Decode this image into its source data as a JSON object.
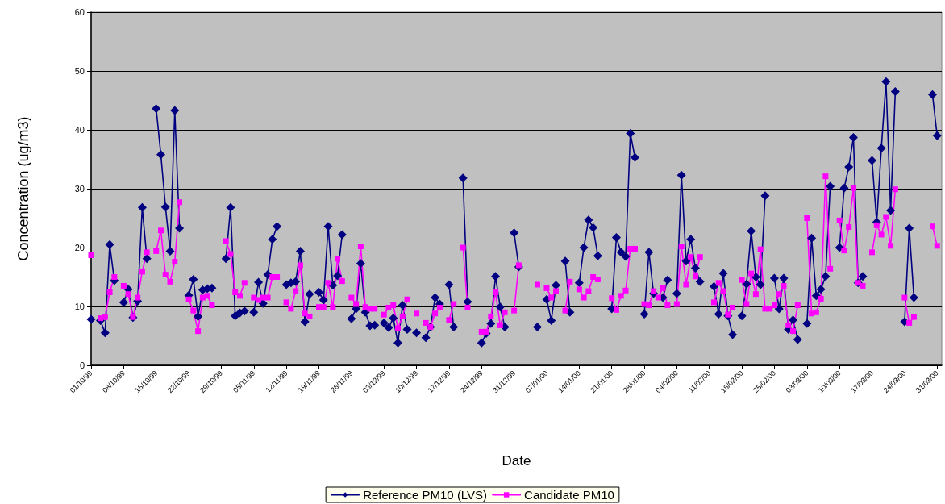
{
  "chart_data": {
    "type": "line",
    "xlabel": "Date",
    "ylabel": "Concentration (ug/m3)",
    "x": [
      "1999-10-01",
      "1999-10-02",
      "1999-10-03",
      "1999-10-04",
      "1999-10-05",
      "1999-10-06",
      "1999-10-07",
      "1999-10-08",
      "1999-10-09",
      "1999-10-10",
      "1999-10-11",
      "1999-10-12",
      "1999-10-13",
      "1999-10-14",
      "1999-10-15",
      "1999-10-16",
      "1999-10-17",
      "1999-10-18",
      "1999-10-19",
      "1999-10-20",
      "1999-10-21",
      "1999-10-22",
      "1999-10-23",
      "1999-10-24",
      "1999-10-25",
      "1999-10-26",
      "1999-10-27",
      "1999-10-28",
      "1999-10-29",
      "1999-10-30",
      "1999-10-31",
      "1999-11-01",
      "1999-11-02",
      "1999-11-03",
      "1999-11-04",
      "1999-11-05",
      "1999-11-06",
      "1999-11-07",
      "1999-11-08",
      "1999-11-09",
      "1999-11-10",
      "1999-11-11",
      "1999-11-12",
      "1999-11-13",
      "1999-11-14",
      "1999-11-15",
      "1999-11-16",
      "1999-11-17",
      "1999-11-18",
      "1999-11-19",
      "1999-11-20",
      "1999-11-21",
      "1999-11-22",
      "1999-11-23",
      "1999-11-24",
      "1999-11-25",
      "1999-11-26",
      "1999-11-27",
      "1999-11-28",
      "1999-11-29",
      "1999-11-30",
      "1999-12-01",
      "1999-12-02",
      "1999-12-03",
      "1999-12-04",
      "1999-12-05",
      "1999-12-06",
      "1999-12-07",
      "1999-12-08",
      "1999-12-09",
      "1999-12-10",
      "1999-12-11",
      "1999-12-12",
      "1999-12-13",
      "1999-12-14",
      "1999-12-15",
      "1999-12-16",
      "1999-12-17",
      "1999-12-18",
      "1999-12-19",
      "1999-12-20",
      "1999-12-21",
      "1999-12-22",
      "1999-12-23",
      "1999-12-24",
      "1999-12-25",
      "1999-12-26",
      "1999-12-27",
      "1999-12-28",
      "1999-12-29",
      "1999-12-30",
      "1999-12-31",
      "2000-01-01",
      "2000-01-02",
      "2000-01-03",
      "2000-01-04",
      "2000-01-05",
      "2000-01-06",
      "2000-01-07",
      "2000-01-08",
      "2000-01-09",
      "2000-01-10",
      "2000-01-11",
      "2000-01-12",
      "2000-01-13",
      "2000-01-14",
      "2000-01-15",
      "2000-01-16",
      "2000-01-17",
      "2000-01-18",
      "2000-01-19",
      "2000-01-20",
      "2000-01-21",
      "2000-01-22",
      "2000-01-23",
      "2000-01-24",
      "2000-01-25",
      "2000-01-26",
      "2000-01-27",
      "2000-01-28",
      "2000-01-29",
      "2000-01-30",
      "2000-01-31",
      "2000-02-01",
      "2000-02-02",
      "2000-02-03",
      "2000-02-04",
      "2000-02-05",
      "2000-02-06",
      "2000-02-07",
      "2000-02-08",
      "2000-02-09",
      "2000-02-10",
      "2000-02-11",
      "2000-02-12",
      "2000-02-13",
      "2000-02-14",
      "2000-02-15",
      "2000-02-16",
      "2000-02-17",
      "2000-02-18",
      "2000-02-19",
      "2000-02-20",
      "2000-02-21",
      "2000-02-22",
      "2000-02-23",
      "2000-02-24",
      "2000-02-25",
      "2000-02-26",
      "2000-02-27",
      "2000-02-28",
      "2000-02-29",
      "2000-03-01",
      "2000-03-02",
      "2000-03-03",
      "2000-03-04",
      "2000-03-05",
      "2000-03-06",
      "2000-03-07",
      "2000-03-08",
      "2000-03-09",
      "2000-03-10",
      "2000-03-11",
      "2000-03-12",
      "2000-03-13",
      "2000-03-14",
      "2000-03-15",
      "2000-03-16",
      "2000-03-17",
      "2000-03-18",
      "2000-03-19",
      "2000-03-20",
      "2000-03-21",
      "2000-03-22",
      "2000-03-23",
      "2000-03-24",
      "2000-03-25",
      "2000-03-26",
      "2000-03-27",
      "2000-03-28",
      "2000-03-29",
      "2000-03-30",
      "2000-03-31"
    ],
    "series": [
      {
        "name": "Reference PM10 (LVS)",
        "color": "#000080",
        "marker": "diamond",
        "values": [
          7.8,
          null,
          7.6,
          5.5,
          20.5,
          14.4,
          null,
          10.7,
          12.9,
          8.1,
          10.9,
          26.8,
          18.1,
          null,
          43.6,
          35.8,
          26.9,
          19.4,
          43.3,
          23.3,
          null,
          11.9,
          14.6,
          8.3,
          12.8,
          13.0,
          13.1,
          null,
          null,
          18.1,
          26.8,
          8.4,
          8.9,
          9.2,
          null,
          9.0,
          14.1,
          10.5,
          15.4,
          21.4,
          23.6,
          null,
          13.7,
          14.0,
          14.2,
          19.4,
          7.4,
          12.1,
          null,
          12.4,
          11.1,
          23.6,
          13.6,
          15.2,
          22.2,
          null,
          7.9,
          9.6,
          17.3,
          9.0,
          6.7,
          6.8,
          null,
          7.2,
          6.4,
          8.0,
          3.8,
          10.2,
          6.1,
          null,
          5.5,
          null,
          4.7,
          6.5,
          11.5,
          10.4,
          null,
          13.7,
          6.5,
          null,
          31.8,
          10.8,
          null,
          null,
          3.8,
          5.4,
          7.1,
          15.1,
          9.9,
          6.5,
          null,
          22.5,
          16.7,
          null,
          null,
          null,
          6.5,
          null,
          11.2,
          7.6,
          13.6,
          null,
          17.7,
          9.0,
          null,
          14.0,
          20.0,
          24.7,
          23.4,
          18.6,
          null,
          null,
          9.6,
          21.7,
          19.2,
          18.5,
          39.4,
          35.3,
          null,
          8.7,
          19.2,
          12.2,
          null,
          11.5,
          14.5,
          null,
          12.2,
          32.3,
          17.7,
          21.4,
          16.5,
          14.2,
          null,
          null,
          13.4,
          8.7,
          15.6,
          8.4,
          5.2,
          null,
          8.4,
          13.8,
          22.8,
          15.0,
          13.7,
          28.8,
          null,
          14.8,
          9.6,
          14.8,
          6.1,
          7.7,
          4.4,
          null,
          7.1,
          21.6,
          11.8,
          12.9,
          15.1,
          30.4,
          null,
          20.0,
          30.1,
          33.7,
          38.7,
          14.0,
          15.1,
          null,
          34.8,
          24.3,
          36.9,
          48.2,
          26.3,
          46.5,
          null,
          7.4,
          23.3,
          11.5,
          null,
          null,
          null,
          46.0,
          39.0
        ]
      },
      {
        "name": "Candidate PM10",
        "color": "#ff00ff",
        "marker": "square",
        "values": [
          18.7,
          null,
          8.0,
          8.2,
          12.4,
          15.0,
          null,
          13.5,
          12.1,
          8.2,
          11.5,
          15.9,
          19.2,
          null,
          19.4,
          22.9,
          15.4,
          14.2,
          17.6,
          27.7,
          null,
          11.2,
          9.3,
          5.8,
          11.5,
          11.8,
          10.2,
          null,
          null,
          21.1,
          18.9,
          12.4,
          11.8,
          14.0,
          null,
          11.5,
          11.1,
          11.5,
          11.5,
          15.0,
          15.0,
          null,
          10.7,
          9.6,
          12.6,
          17.0,
          8.8,
          8.3,
          null,
          9.9,
          9.9,
          14.0,
          9.9,
          18.1,
          14.3,
          null,
          11.5,
          10.4,
          20.2,
          9.9,
          9.6,
          9.6,
          null,
          8.6,
          9.8,
          10.2,
          6.3,
          8.3,
          11.2,
          null,
          8.8,
          null,
          7.2,
          6.5,
          8.8,
          9.8,
          null,
          7.7,
          10.4,
          null,
          20.0,
          9.8,
          null,
          null,
          5.7,
          5.7,
          8.3,
          12.4,
          6.8,
          9.0,
          null,
          9.3,
          17.0,
          null,
          null,
          null,
          13.7,
          null,
          13.1,
          11.5,
          12.6,
          null,
          9.3,
          14.2,
          null,
          12.9,
          11.5,
          12.6,
          15.0,
          14.6,
          null,
          null,
          11.4,
          9.4,
          11.8,
          12.7,
          19.8,
          19.8,
          null,
          10.4,
          10.2,
          12.6,
          11.5,
          13.1,
          10.2,
          null,
          10.4,
          20.2,
          13.7,
          18.4,
          15.1,
          18.4,
          null,
          null,
          10.7,
          14.0,
          12.6,
          8.6,
          9.8,
          null,
          14.5,
          10.4,
          15.6,
          12.1,
          19.7,
          9.6,
          9.6,
          10.2,
          12.1,
          13.5,
          6.8,
          5.8,
          10.2,
          null,
          25.0,
          8.8,
          9.0,
          11.3,
          32.1,
          16.4,
          null,
          24.6,
          19.5,
          23.5,
          30.1,
          14.0,
          13.5,
          null,
          19.2,
          23.8,
          22.2,
          25.2,
          20.3,
          29.9,
          null,
          11.5,
          7.2,
          8.2,
          null,
          null,
          null,
          23.6,
          20.3
        ]
      }
    ],
    "xlim": [
      "1999-10-01",
      "2000-04-01"
    ],
    "xticks": [
      {
        "value": "1999-10-01",
        "label": "01/10/99"
      },
      {
        "value": "1999-10-08",
        "label": "08/10/99"
      },
      {
        "value": "1999-10-15",
        "label": "15/10/99"
      },
      {
        "value": "1999-10-22",
        "label": "22/10/99"
      },
      {
        "value": "1999-10-29",
        "label": "29/10/99"
      },
      {
        "value": "1999-11-05",
        "label": "05/11/99"
      },
      {
        "value": "1999-11-12",
        "label": "12/11/99"
      },
      {
        "value": "1999-11-19",
        "label": "19/11/99"
      },
      {
        "value": "1999-11-26",
        "label": "26/11/99"
      },
      {
        "value": "1999-12-03",
        "label": "03/12/99"
      },
      {
        "value": "1999-12-10",
        "label": "10/12/99"
      },
      {
        "value": "1999-12-17",
        "label": "17/12/99"
      },
      {
        "value": "1999-12-24",
        "label": "24/12/99"
      },
      {
        "value": "1999-12-31",
        "label": "31/12/99"
      },
      {
        "value": "2000-01-07",
        "label": "07/01/00"
      },
      {
        "value": "2000-01-14",
        "label": "14/01/00"
      },
      {
        "value": "2000-01-21",
        "label": "21/01/00"
      },
      {
        "value": "2000-01-28",
        "label": "28/01/00"
      },
      {
        "value": "2000-02-04",
        "label": "04/02/00"
      },
      {
        "value": "2000-02-11",
        "label": "11/02/00"
      },
      {
        "value": "2000-02-18",
        "label": "18/02/00"
      },
      {
        "value": "2000-02-25",
        "label": "25/02/00"
      },
      {
        "value": "2000-03-03",
        "label": "03/03/00"
      },
      {
        "value": "2000-03-10",
        "label": "10/03/00"
      },
      {
        "value": "2000-03-17",
        "label": "17/03/00"
      },
      {
        "value": "2000-03-24",
        "label": "24/03/00"
      },
      {
        "value": "2000-03-31",
        "label": "31/03/00"
      }
    ],
    "ylim": [
      0,
      60
    ],
    "yticks": [
      0,
      10,
      20,
      30,
      40,
      50,
      60
    ],
    "grid": "y",
    "legend": "bottom",
    "line_style": "solid"
  }
}
